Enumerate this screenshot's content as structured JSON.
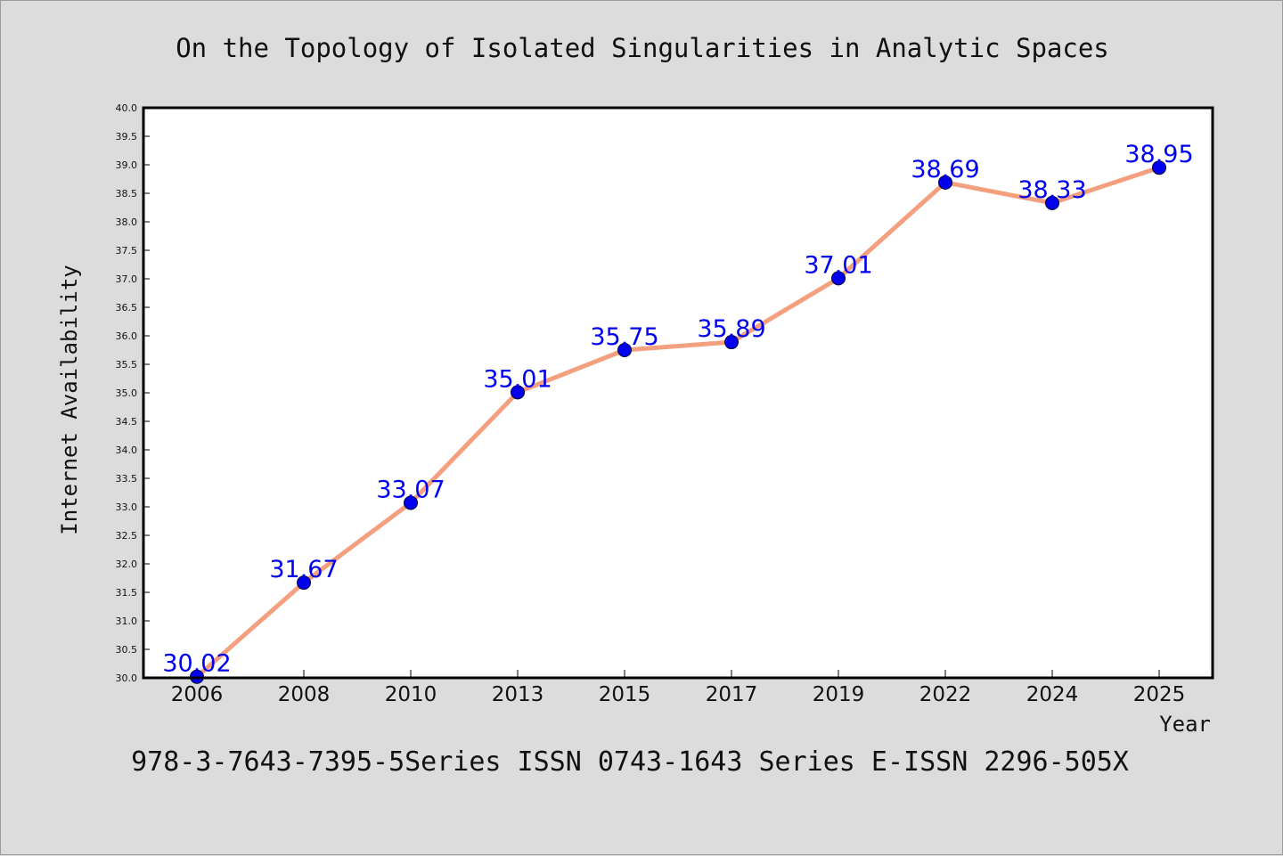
{
  "colors": {
    "background": "#dcdcdc",
    "plot_background": "#ffffff",
    "line": "#f4a07e",
    "marker": "#0000ee",
    "label_text": "#0000ee",
    "text": "#111111"
  },
  "chart_data": {
    "type": "line",
    "title": "On the Topology of Isolated Singularities in Analytic Spaces",
    "xlabel": "Year",
    "ylabel": "Internet Availability",
    "footer": "978-3-7643-7395-5Series ISSN 0743-1643 Series E-ISSN 2296-505X",
    "categories": [
      "2006",
      "2008",
      "2010",
      "2013",
      "2015",
      "2017",
      "2019",
      "2022",
      "2024",
      "2025"
    ],
    "series": [
      {
        "values": [
          30.02,
          31.67,
          33.07,
          35.01,
          35.75,
          35.89,
          37.01,
          38.69,
          38.33,
          38.95
        ],
        "labels": [
          "30.02",
          "31.67",
          "33.07",
          "35.01",
          "35.75",
          "35.89",
          "37.01",
          "38.69",
          "38.33",
          "38.95"
        ]
      }
    ],
    "ylim": [
      30.0,
      40.0
    ],
    "yticks": [
      "30.0",
      "30.5",
      "31.0",
      "31.5",
      "32.0",
      "32.5",
      "33.0",
      "33.5",
      "34.0",
      "34.5",
      "35.0",
      "35.5",
      "36.0",
      "36.5",
      "37.0",
      "37.5",
      "38.0",
      "38.5",
      "39.0",
      "39.5",
      "40.0"
    ],
    "grid": false,
    "legend": "none"
  }
}
